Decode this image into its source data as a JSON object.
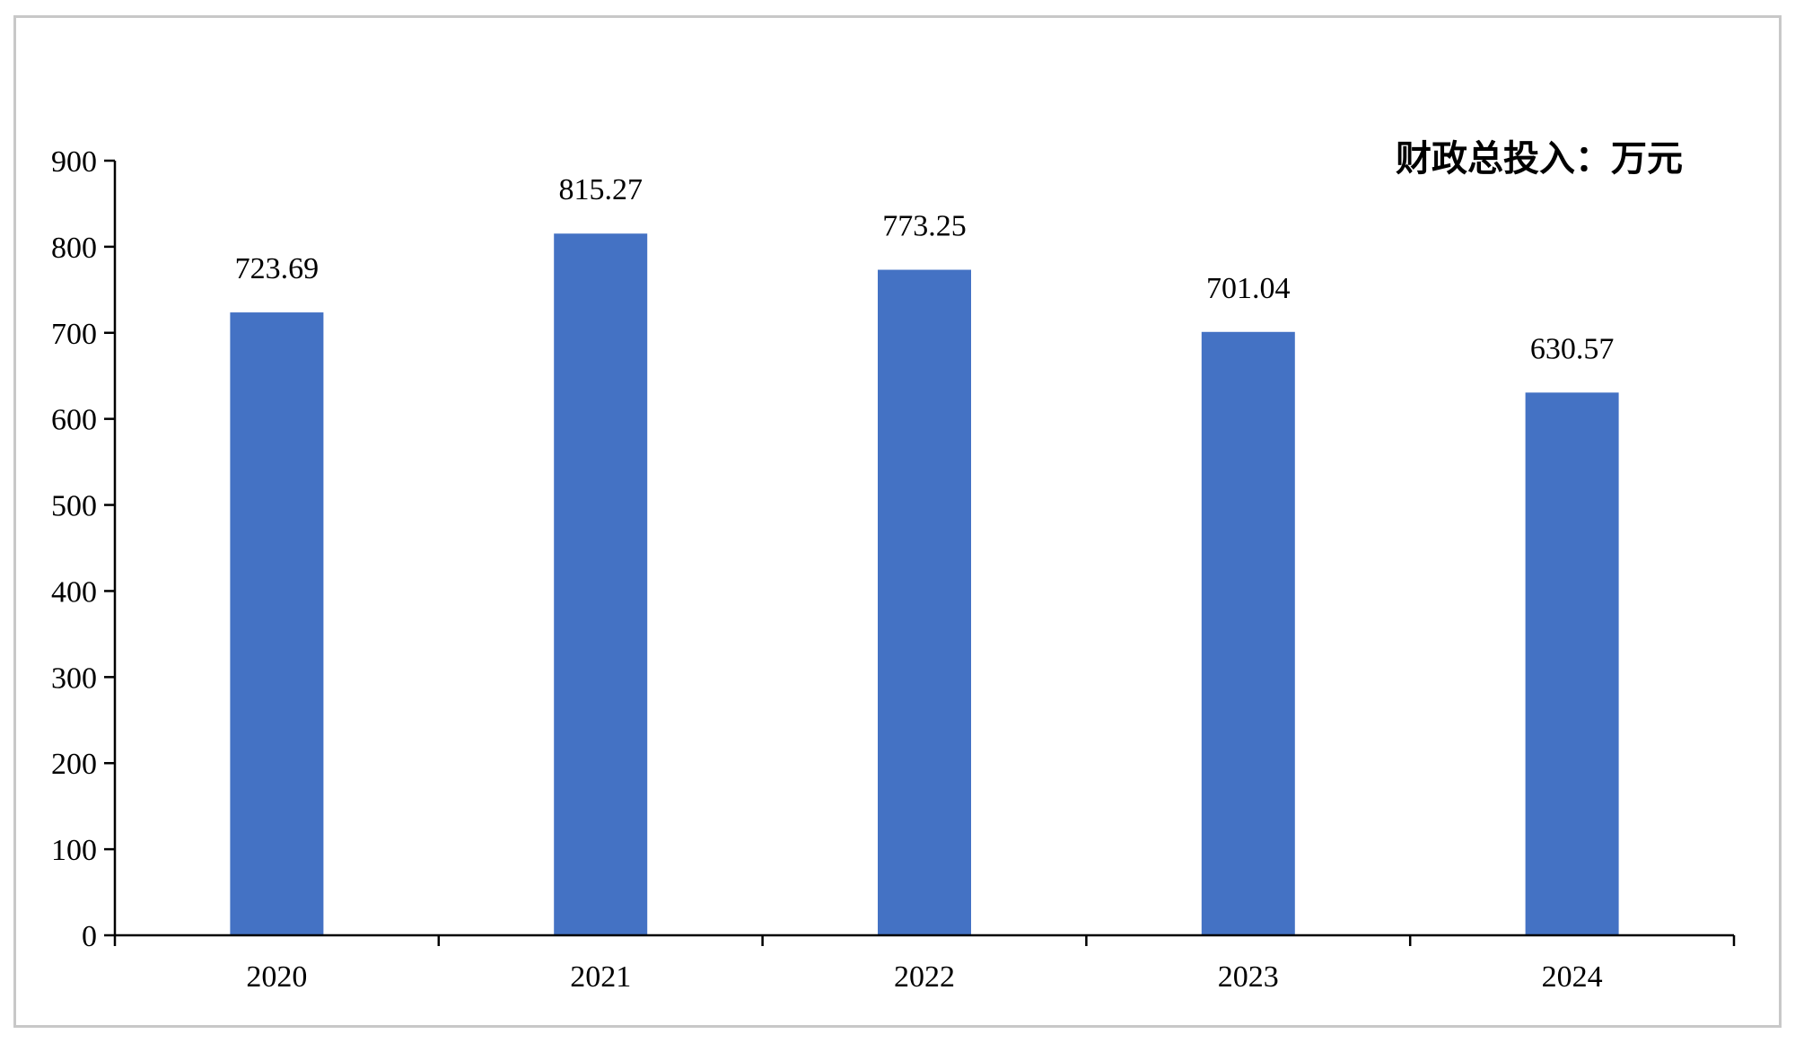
{
  "chart_data": {
    "type": "bar",
    "categories": [
      "2020",
      "2021",
      "2022",
      "2023",
      "2024"
    ],
    "values": [
      723.69,
      815.27,
      773.25,
      701.04,
      630.57
    ],
    "data_labels": [
      "723.69",
      "815.27",
      "773.25",
      "701.04",
      "630.57"
    ],
    "annotation": "财政总投入：万元",
    "title": "",
    "xlabel": "",
    "ylabel": "",
    "ylim": [
      0,
      900
    ],
    "yticks": [
      0,
      100,
      200,
      300,
      400,
      500,
      600,
      700,
      800,
      900
    ],
    "grid": false,
    "legend": "none",
    "bar_color": "#4472c4",
    "axis_color": "#000000"
  }
}
